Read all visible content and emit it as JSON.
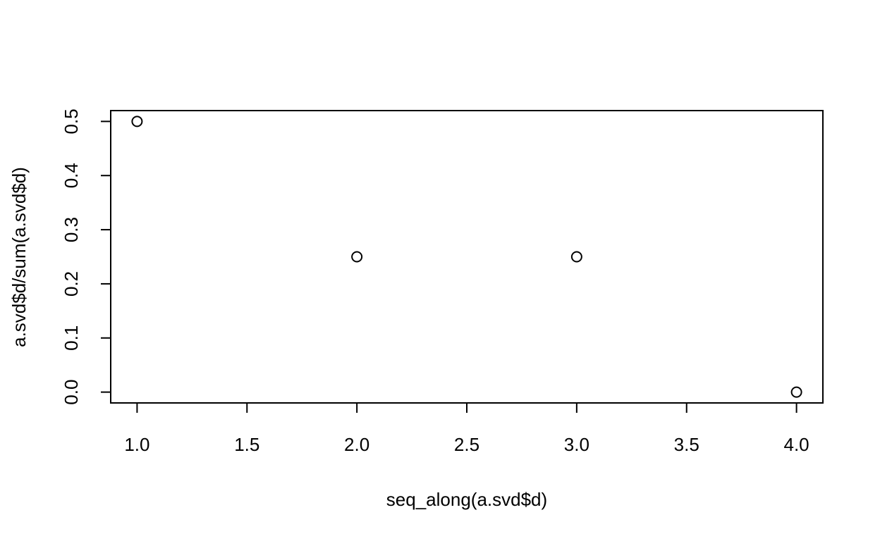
{
  "chart_data": {
    "type": "scatter",
    "title": "",
    "xlabel": "seq_along(a.svd$d)",
    "ylabel": "a.svd$d/sum(a.svd$d)",
    "xlim": [
      0.88,
      4.12
    ],
    "ylim": [
      -0.02,
      0.52
    ],
    "x_ticks": [
      1.0,
      1.5,
      2.0,
      2.5,
      3.0,
      3.5,
      4.0
    ],
    "x_tick_labels": [
      "1.0",
      "1.5",
      "2.0",
      "2.5",
      "3.0",
      "3.5",
      "4.0"
    ],
    "y_ticks": [
      0.0,
      0.1,
      0.2,
      0.3,
      0.4,
      0.5
    ],
    "y_tick_labels": [
      "0.0",
      "0.1",
      "0.2",
      "0.3",
      "0.4",
      "0.5"
    ],
    "grid": false,
    "marker": "open-circle",
    "x": [
      1,
      2,
      3,
      4
    ],
    "y": [
      0.5,
      0.25,
      0.25,
      0.0
    ]
  }
}
